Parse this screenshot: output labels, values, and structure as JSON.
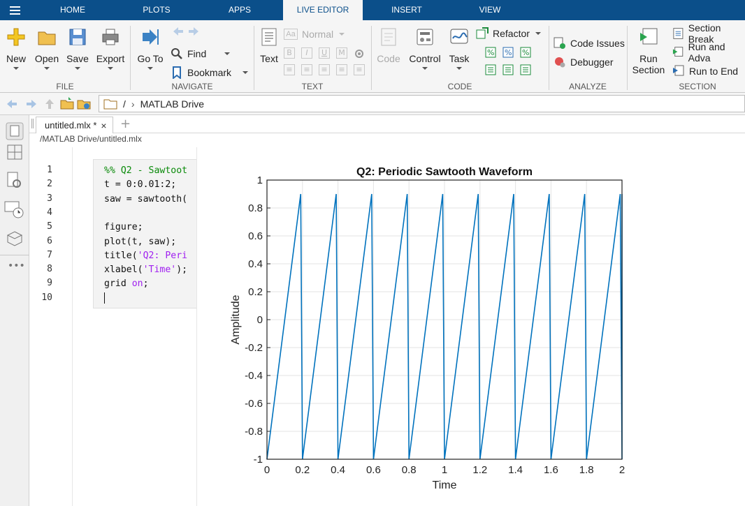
{
  "tabs": [
    "HOME",
    "PLOTS",
    "APPS",
    "LIVE EDITOR",
    "INSERT",
    "VIEW"
  ],
  "active_tab": "LIVE EDITOR",
  "ribbon": {
    "file": {
      "label": "FILE",
      "new": "New",
      "open": "Open",
      "save": "Save",
      "export": "Export"
    },
    "navigate": {
      "label": "NAVIGATE",
      "goto": "Go To",
      "find": "Find",
      "bookmark": "Bookmark"
    },
    "text": {
      "label": "TEXT",
      "text": "Text",
      "style": "Normal",
      "bold": "B",
      "italic": "I",
      "underline": "U",
      "mono": "M"
    },
    "code": {
      "label": "CODE",
      "code": "Code",
      "control": "Control",
      "task": "Task",
      "refactor": "Refactor"
    },
    "analyze": {
      "label": "ANALYZE",
      "issues": "Code Issues",
      "debugger": "Debugger"
    },
    "section": {
      "label": "SECTION",
      "run_section_1": "Run",
      "run_section_2": "Section",
      "section_break": "Section Break",
      "run_advance": "Run and Adva",
      "run_end": "Run to End"
    }
  },
  "address": {
    "root": "/",
    "folder": "MATLAB Drive"
  },
  "document": {
    "tab": "untitled.mlx *",
    "path": "/MATLAB Drive/untitled.mlx"
  },
  "code_lines": [
    {
      "n": "1",
      "text": "%% Q2 - Sawtoot"
    },
    {
      "n": "2",
      "text": "t = 0:0.01:2;"
    },
    {
      "n": "3",
      "text": "saw = sawtooth("
    },
    {
      "n": "4",
      "text": ""
    },
    {
      "n": "5",
      "text": "figure;"
    },
    {
      "n": "6",
      "text": "plot(t, saw);"
    },
    {
      "n": "7",
      "text": "title('Q2: Peri"
    },
    {
      "n": "8",
      "text": "xlabel('Time');"
    },
    {
      "n": "9",
      "text": "grid on;"
    },
    {
      "n": "10",
      "text": ""
    }
  ],
  "colors": {
    "tab_bar": "#0b4f8a",
    "comment": "#0a8a0a",
    "string": "#a020f0",
    "keyword": "#0e00ff",
    "line": "#0072bd"
  },
  "chart_data": {
    "type": "line",
    "title": "Q2: Periodic Sawtooth Waveform",
    "xlabel": "Time",
    "ylabel": "Amplitude",
    "xlim": [
      0,
      2
    ],
    "ylim": [
      -1,
      1
    ],
    "xticks": [
      "0",
      "0.2",
      "0.4",
      "0.6",
      "0.8",
      "1",
      "1.2",
      "1.4",
      "1.6",
      "1.8",
      "2"
    ],
    "yticks": [
      "1",
      "0.8",
      "0.6",
      "0.4",
      "0.2",
      "0",
      "-0.2",
      "-0.4",
      "-0.6",
      "-0.8",
      "-1"
    ],
    "grid": "on",
    "series": [
      {
        "period": 0.2,
        "x_range": [
          0,
          2
        ],
        "rise_from": -1,
        "rise_to": 0.9
      }
    ]
  }
}
